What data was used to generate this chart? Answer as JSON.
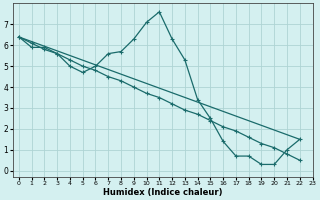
{
  "xlabel": "Humidex (Indice chaleur)",
  "xlim": [
    -0.5,
    23
  ],
  "ylim": [
    -0.3,
    8
  ],
  "xticks": [
    0,
    1,
    2,
    3,
    4,
    5,
    6,
    7,
    8,
    9,
    10,
    11,
    12,
    13,
    14,
    15,
    16,
    17,
    18,
    19,
    20,
    21,
    22,
    23
  ],
  "yticks": [
    0,
    1,
    2,
    3,
    4,
    5,
    6,
    7
  ],
  "bg_color": "#d4f0f0",
  "grid_color": "#aed4d4",
  "line_color": "#1a6b6b",
  "line1_x": [
    0,
    1,
    2,
    3,
    4,
    5,
    6,
    7,
    8,
    9,
    10,
    11,
    12,
    13,
    14,
    15,
    16,
    17,
    18,
    19,
    20,
    21,
    22
  ],
  "line1_y": [
    6.4,
    5.9,
    5.9,
    5.6,
    5.0,
    4.7,
    5.0,
    5.6,
    5.7,
    6.3,
    7.1,
    7.6,
    6.3,
    5.3,
    3.4,
    2.5,
    1.4,
    0.7,
    0.7,
    0.3,
    0.3,
    1.0,
    1.5
  ],
  "line2_x": [
    0,
    1,
    2,
    3,
    4,
    5,
    6,
    7,
    8,
    9,
    10,
    11,
    12,
    13,
    14,
    15,
    16,
    17,
    18,
    19,
    20,
    21,
    22
  ],
  "line2_y": [
    6.4,
    6.1,
    5.8,
    5.6,
    5.3,
    5.0,
    4.8,
    4.5,
    4.3,
    4.0,
    3.7,
    3.5,
    3.2,
    2.9,
    2.7,
    2.4,
    2.1,
    1.9,
    1.6,
    1.3,
    1.1,
    0.8,
    0.5
  ],
  "line3_x": [
    0,
    22
  ],
  "line3_y": [
    6.4,
    1.5
  ]
}
